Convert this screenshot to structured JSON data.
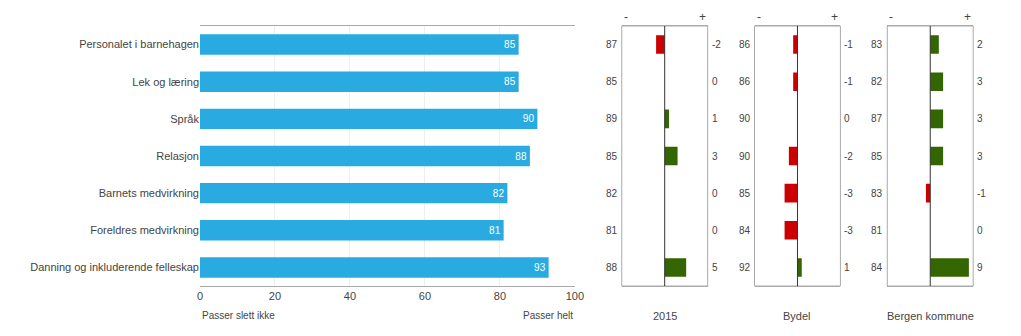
{
  "chart_data": [
    {
      "type": "bar",
      "orientation": "horizontal",
      "categories": [
        "Personalet i barnehagen",
        "Lek og læring",
        "Språk",
        "Relasjon",
        "Barnets medvirkning",
        "Foreldres medvirkning",
        "Danning og inkluderende felleskap"
      ],
      "values": [
        85,
        85,
        90,
        88,
        82,
        81,
        93
      ],
      "color": "#29ABE2",
      "xlim": [
        0,
        100
      ],
      "xticks": [
        0,
        20,
        40,
        60,
        80,
        100
      ],
      "grid": true,
      "data_labels": true,
      "annotations": [
        "Passer slett ikke",
        "Passer helt"
      ]
    },
    {
      "type": "bar",
      "orientation": "horizontal",
      "xlabel": "2015",
      "categories": [
        "Personalet i barnehagen",
        "Lek og læring",
        "Språk",
        "Relasjon",
        "Barnets medvirkning",
        "Foreldres medvirkning",
        "Danning og inkluderende felleskap"
      ],
      "values": [
        -2,
        0,
        1,
        3,
        0,
        0,
        5
      ],
      "reference": [
        87,
        85,
        89,
        85,
        82,
        81,
        88
      ],
      "colors": [
        "#CC0000",
        null,
        "#336600",
        "#336600",
        null,
        null,
        "#336600"
      ],
      "xlim": [
        -10,
        10
      ],
      "xticks": [],
      "tick_labels": false,
      "grid": false,
      "data_labels": true,
      "annotations": [
        "-",
        "+"
      ]
    },
    {
      "type": "bar",
      "orientation": "horizontal",
      "xlabel": "Bydel",
      "categories": [
        "Personalet i barnehagen",
        "Lek og læring",
        "Språk",
        "Relasjon",
        "Barnets medvirkning",
        "Foreldres medvirkning",
        "Danning og inkluderende felleskap"
      ],
      "values": [
        -1,
        -1,
        0,
        -2,
        -3,
        -3,
        1
      ],
      "reference": [
        86,
        86,
        90,
        90,
        85,
        84,
        92
      ],
      "colors": [
        "#CC0000",
        "#CC0000",
        null,
        "#CC0000",
        "#CC0000",
        "#CC0000",
        "#336600"
      ],
      "xlim": [
        -10,
        10
      ],
      "xticks": [],
      "tick_labels": false,
      "grid": false,
      "data_labels": true,
      "annotations": [
        "-",
        "+"
      ]
    },
    {
      "type": "bar",
      "orientation": "horizontal",
      "xlabel": "Bergen kommune",
      "categories": [
        "Personalet i barnehagen",
        "Lek og læring",
        "Språk",
        "Relasjon",
        "Barnets medvirkning",
        "Foreldres medvirkning",
        "Danning og inkluderende felleskap"
      ],
      "values": [
        2,
        3,
        3,
        3,
        -1,
        0,
        9
      ],
      "reference": [
        83,
        82,
        87,
        85,
        83,
        81,
        84
      ],
      "colors": [
        "#336600",
        "#336600",
        "#336600",
        "#336600",
        "#CC0000",
        null,
        "#336600"
      ],
      "xlim": [
        -10,
        10
      ],
      "xticks": [],
      "tick_labels": false,
      "grid": false,
      "data_labels": true,
      "annotations": [
        "-",
        "+"
      ]
    }
  ]
}
